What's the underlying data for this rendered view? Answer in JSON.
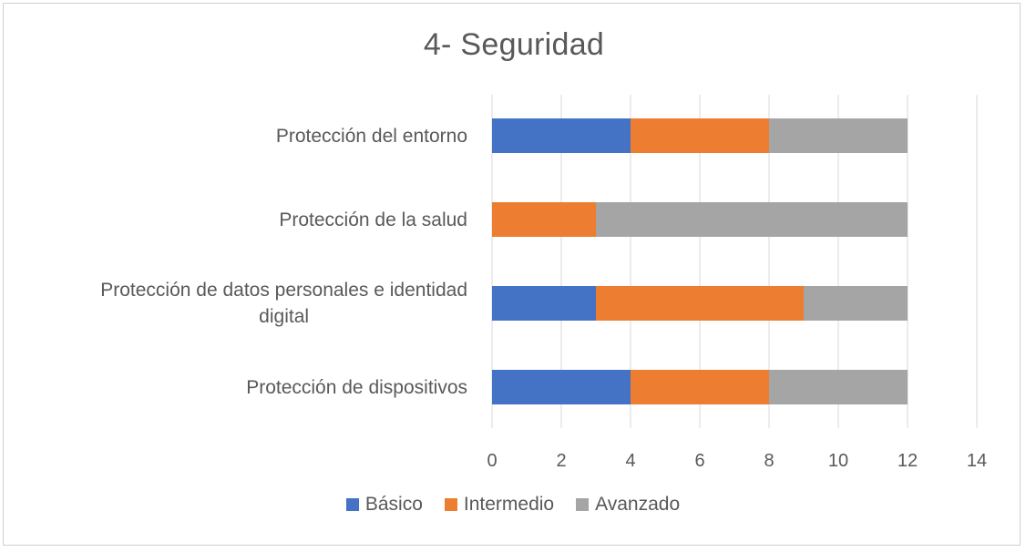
{
  "chart_data": {
    "type": "bar",
    "orientation": "horizontal",
    "stacked": true,
    "title": "4- Seguridad",
    "categories": [
      "Protección del entorno",
      "Protección de la salud",
      "Protección de datos personales e identidad digital",
      "Protección de dispositivos"
    ],
    "category_lines": [
      [
        "Protección del entorno"
      ],
      [
        "Protección de la salud"
      ],
      [
        "Protección de datos personales e identidad",
        "digital"
      ],
      [
        "Protección de dispositivos"
      ]
    ],
    "series": [
      {
        "name": "Básico",
        "color": "#4472c4",
        "values": [
          4,
          0,
          3,
          4
        ]
      },
      {
        "name": "Intermedio",
        "color": "#ed7d31",
        "values": [
          4,
          3,
          6,
          4
        ]
      },
      {
        "name": "Avanzado",
        "color": "#a5a5a5",
        "values": [
          4,
          9,
          3,
          4
        ]
      }
    ],
    "xlim": [
      0,
      14
    ],
    "xticks": [
      "0",
      "2",
      "4",
      "6",
      "8",
      "10",
      "12",
      "14"
    ],
    "xlabel": "",
    "ylabel": "",
    "grid": true,
    "legend_position": "bottom"
  }
}
